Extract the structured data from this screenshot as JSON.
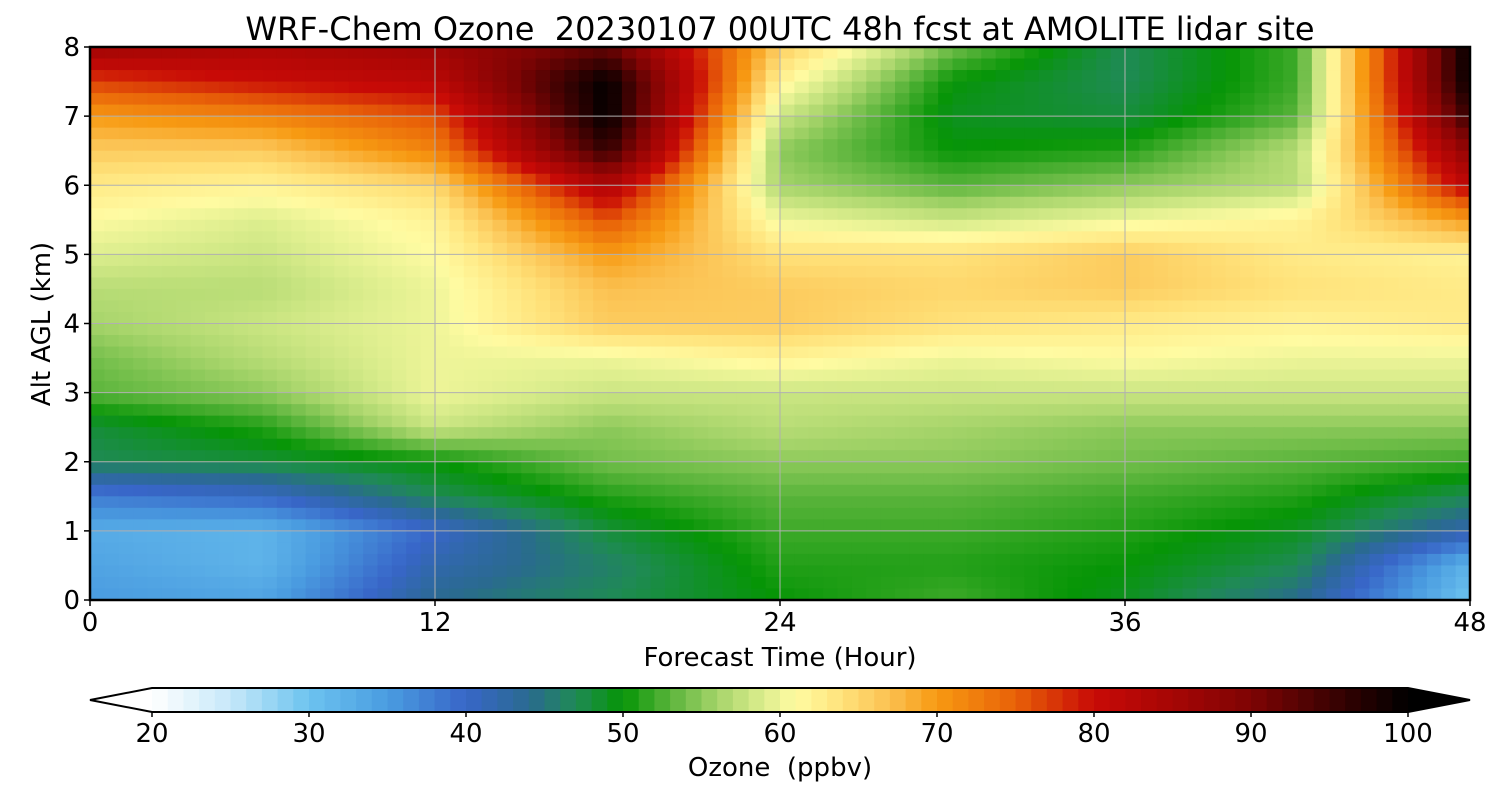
{
  "chart_data": {
    "type": "heatmap",
    "title": "WRF-Chem Ozone  20230107 00UTC 48h fcst at AMOLITE lidar site",
    "xlabel": "Forecast Time (Hour)",
    "ylabel": "Alt AGL (km)",
    "xlim": [
      0,
      48
    ],
    "ylim": [
      0,
      8
    ],
    "xticks": [
      0,
      12,
      24,
      36,
      48
    ],
    "yticks": [
      0,
      1,
      2,
      3,
      4,
      5,
      6,
      7,
      8
    ],
    "grid": true,
    "grid_x_hours": [
      0,
      6,
      12,
      18,
      24,
      30,
      36,
      42,
      48
    ],
    "grid_y_km": [
      0,
      0.5,
      1,
      1.5,
      2,
      2.5,
      3,
      3.5,
      4,
      4.5,
      5,
      5.5,
      6,
      6.5,
      7,
      7.5,
      8
    ],
    "ozone_ppbv": [
      [
        35,
        34,
        44,
        47,
        50,
        52,
        49,
        44,
        30
      ],
      [
        34,
        32,
        42,
        46,
        51,
        51,
        50,
        47,
        32
      ],
      [
        33,
        32,
        40,
        48,
        52,
        52,
        51,
        49,
        42
      ],
      [
        38,
        40,
        47,
        51,
        53,
        53,
        52,
        51,
        47
      ],
      [
        47,
        48,
        50,
        54,
        55,
        55,
        54,
        53,
        52
      ],
      [
        48,
        51,
        58,
        55,
        57,
        56,
        55,
        55,
        55
      ],
      [
        53,
        55,
        60,
        58,
        58,
        58,
        58,
        58,
        58
      ],
      [
        54,
        57,
        60,
        60,
        62,
        60,
        61,
        60,
        60
      ],
      [
        56,
        58,
        60,
        66,
        66,
        64,
        63,
        62,
        63
      ],
      [
        57,
        57,
        60,
        67,
        66,
        65,
        66,
        64,
        63
      ],
      [
        59,
        58,
        61,
        70,
        64,
        64,
        66,
        63,
        62
      ],
      [
        61,
        59,
        62,
        76,
        60,
        58,
        60,
        62,
        70
      ],
      [
        63,
        62,
        65,
        84,
        56,
        53,
        55,
        57,
        82
      ],
      [
        66,
        66,
        72,
        96,
        55,
        50,
        51,
        57,
        88
      ],
      [
        70,
        72,
        76,
        100,
        58,
        49,
        48,
        53,
        96
      ],
      [
        77,
        80,
        82,
        100,
        62,
        50,
        47,
        52,
        100
      ],
      [
        86,
        84,
        86,
        92,
        66,
        54,
        47,
        52,
        100
      ]
    ],
    "colorbar": {
      "label": "Ozone  (ppbv)",
      "ticks": [
        20,
        30,
        40,
        50,
        60,
        70,
        80,
        90,
        100
      ],
      "vmin": 20,
      "vmax": 100,
      "extend": "both"
    },
    "colormap_stops": [
      {
        "v": 20,
        "c": "#ffffff"
      },
      {
        "v": 25,
        "c": "#c6e8f9"
      },
      {
        "v": 30,
        "c": "#6cc3ef"
      },
      {
        "v": 35,
        "c": "#4a9ce0"
      },
      {
        "v": 40,
        "c": "#3866c8"
      },
      {
        "v": 44,
        "c": "#2a6a90"
      },
      {
        "v": 47,
        "c": "#1f8a55"
      },
      {
        "v": 50,
        "c": "#069506"
      },
      {
        "v": 53,
        "c": "#5ab43b"
      },
      {
        "v": 56,
        "c": "#a6d46a"
      },
      {
        "v": 59,
        "c": "#ddee8e"
      },
      {
        "v": 61,
        "c": "#fffba2"
      },
      {
        "v": 64,
        "c": "#ffe27a"
      },
      {
        "v": 67,
        "c": "#fbc050"
      },
      {
        "v": 70,
        "c": "#f79a12"
      },
      {
        "v": 75,
        "c": "#e86108"
      },
      {
        "v": 80,
        "c": "#c80a06"
      },
      {
        "v": 85,
        "c": "#a60605"
      },
      {
        "v": 90,
        "c": "#7e0404"
      },
      {
        "v": 95,
        "c": "#3e0202"
      },
      {
        "v": 100,
        "c": "#000000"
      }
    ]
  }
}
